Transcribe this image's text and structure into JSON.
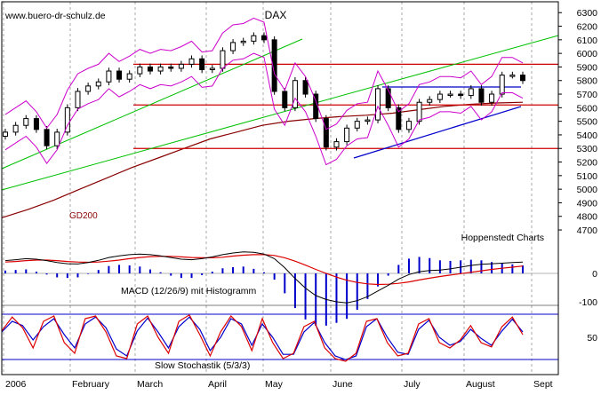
{
  "watermark": "www.buero-dr-schulz.de",
  "source_label": "Hoppenstedt Charts",
  "chart_data": [
    {
      "type": "candlestick",
      "title": "DAX",
      "x_labels": [
        "2006",
        "February",
        "March",
        "April",
        "May",
        "June",
        "July",
        "August",
        "Sept"
      ],
      "y_range": [
        4550,
        6380
      ],
      "y_ticks": [
        4700,
        4800,
        4900,
        5000,
        5100,
        5200,
        5300,
        5400,
        5500,
        5600,
        5700,
        5800,
        5900,
        6000,
        6100,
        6200,
        6300
      ],
      "grid": true,
      "horizontal_levels": [
        5920,
        5620,
        5300
      ],
      "moving_average_label": "GD200",
      "moving_average_200": [
        4790,
        4850,
        4920,
        5000,
        5080,
        5160,
        5230,
        5300,
        5370,
        5420,
        5470,
        5500,
        5520,
        5535,
        5545,
        5560,
        5585,
        5610,
        5625,
        5635,
        5640
      ],
      "close": [
        5420,
        5470,
        5520,
        5440,
        5320,
        5420,
        5600,
        5720,
        5760,
        5790,
        5870,
        5810,
        5850,
        5900,
        5870,
        5900,
        5890,
        5920,
        5960,
        5880,
        5890,
        6020,
        6080,
        6090,
        6130,
        6100,
        5720,
        5600,
        5800,
        5700,
        5520,
        5310,
        5350,
        5450,
        5500,
        5510,
        5740,
        5600,
        5440,
        5500,
        5640,
        5660,
        5700,
        5700,
        5690,
        5740,
        5640,
        5700,
        5840,
        5840,
        5800
      ]
    },
    {
      "type": "line",
      "title": "MACD (12/26/9) mit Histogramm",
      "y_ticks": [
        0,
        -100
      ],
      "macd": [
        45,
        48,
        52,
        50,
        45,
        38,
        34,
        33,
        38,
        46,
        56,
        62,
        66,
        68,
        66,
        62,
        56,
        50,
        48,
        52,
        58,
        66,
        72,
        76,
        74,
        68,
        52,
        20,
        -18,
        -52,
        -78,
        -92,
        -100,
        -104,
        -96,
        -82,
        -62,
        -42,
        -20,
        -4,
        6,
        10,
        12,
        16,
        22,
        28,
        32,
        34,
        36,
        38,
        40
      ],
      "signal": [
        40,
        42,
        45,
        47,
        47,
        45,
        42,
        40,
        39,
        40,
        43,
        47,
        52,
        56,
        59,
        60,
        60,
        58,
        56,
        55,
        55,
        57,
        61,
        64,
        66,
        66,
        63,
        55,
        43,
        29,
        14,
        0,
        -13,
        -24,
        -32,
        -37,
        -39,
        -38,
        -35,
        -30,
        -23,
        -17,
        -11,
        -6,
        -1,
        4,
        9,
        14,
        18,
        22,
        26
      ]
    },
    {
      "type": "line",
      "title": "Slow Stochastik (5/3/3)",
      "y_ticks": [
        50
      ],
      "reference_levels": [
        80,
        20
      ],
      "k_line": [
        62,
        88,
        68,
        30,
        80,
        90,
        40,
        20,
        85,
        90,
        60,
        15,
        10,
        75,
        90,
        50,
        20,
        80,
        92,
        55,
        15,
        60,
        90,
        70,
        25,
        85,
        40,
        10,
        20,
        70,
        80,
        30,
        10,
        5,
        20,
        80,
        85,
        40,
        15,
        20,
        75,
        85,
        40,
        30,
        45,
        72,
        40,
        32,
        70,
        88,
        55
      ],
      "d_line": [
        60,
        80,
        72,
        45,
        70,
        85,
        55,
        30,
        75,
        88,
        68,
        28,
        15,
        62,
        86,
        60,
        30,
        70,
        88,
        65,
        25,
        50,
        85,
        75,
        35,
        75,
        50,
        18,
        18,
        60,
        78,
        40,
        15,
        8,
        15,
        70,
        85,
        50,
        22,
        18,
        65,
        82,
        50,
        35,
        42,
        65,
        48,
        35,
        62,
        84,
        60
      ]
    }
  ],
  "colors": {
    "candle": "#000000",
    "bollinger": "#cc00cc",
    "trendline": "#00c000",
    "level": "#cc0000",
    "ma200": "#880000",
    "support": "#0000cc",
    "macd": "#000000",
    "signal": "#dd0000",
    "histogram": "#0000cc",
    "stoch_k": "#dd0000",
    "stoch_d": "#0000cc",
    "grid": "#aaaaaa",
    "axis_text": "#000000"
  }
}
